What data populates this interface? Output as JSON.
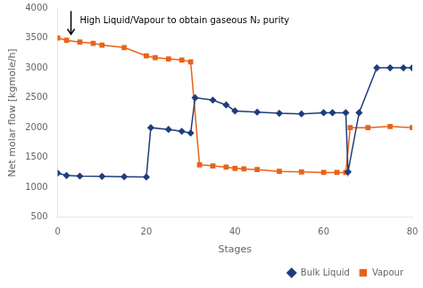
{
  "chart_data": {
    "type": "line",
    "xlabel": "Stages",
    "ylabel": "Net molar flow [kgmole/h]",
    "xlim": [
      0,
      80
    ],
    "ylim": [
      500,
      4000
    ],
    "xticks": [
      0,
      20,
      40,
      60,
      80
    ],
    "yticks": [
      500,
      1000,
      1500,
      2000,
      2500,
      3000,
      3500,
      4000
    ],
    "grid": false,
    "legend": "lower right",
    "series": [
      {
        "name": "Bulk Liquid",
        "color": "#1f3d7a",
        "marker": "diamond",
        "x": [
          0,
          2,
          5,
          10,
          15,
          20,
          21,
          25,
          28,
          30,
          31,
          35,
          38,
          40,
          45,
          50,
          55,
          60,
          62,
          65,
          65.5,
          68,
          72,
          75,
          78,
          80
        ],
        "values": [
          1240,
          1200,
          1190,
          1185,
          1180,
          1175,
          2000,
          1970,
          1940,
          1910,
          2500,
          2460,
          2380,
          2280,
          2260,
          2240,
          2230,
          2250,
          2250,
          2250,
          1260,
          2250,
          3000,
          3000,
          3000,
          3000
        ]
      },
      {
        "name": "Vapour",
        "color": "#e8631a",
        "marker": "square",
        "x": [
          0,
          2,
          5,
          8,
          10,
          15,
          20,
          22,
          25,
          28,
          30,
          32,
          35,
          38,
          40,
          42,
          45,
          50,
          55,
          60,
          63,
          65,
          66,
          70,
          75,
          80
        ],
        "values": [
          3500,
          3460,
          3430,
          3410,
          3380,
          3340,
          3200,
          3170,
          3150,
          3130,
          3100,
          1380,
          1360,
          1340,
          1320,
          1310,
          1300,
          1270,
          1260,
          1250,
          1250,
          1250,
          2000,
          2000,
          2020,
          2000
        ]
      }
    ],
    "annotations": [
      {
        "text": "High Liquid/Vapour to obtain gaseous N₂ purity",
        "x": 5,
        "y": 3780,
        "arrow": {
          "x": 3,
          "y_start": 3950,
          "y_end": 3560
        }
      }
    ]
  }
}
